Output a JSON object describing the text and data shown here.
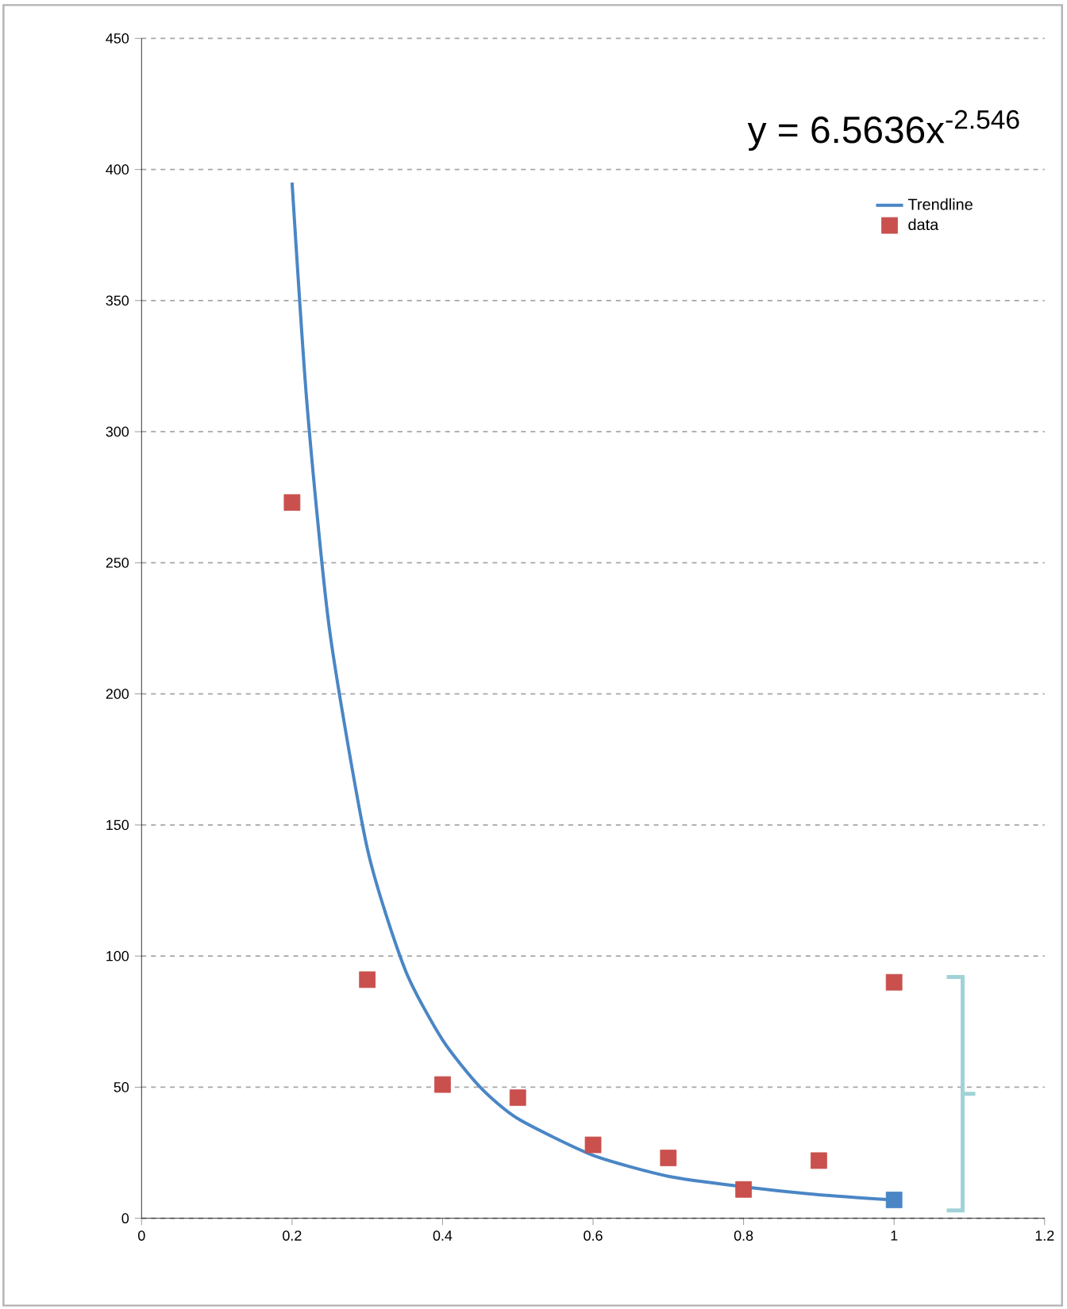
{
  "chart_data": {
    "type": "scatter",
    "annotations": [
      "y = 6.5636x$^{-2.546}$"
    ],
    "series": [
      {
        "name": "Trendline",
        "type": "line",
        "color": "#4a86c5",
        "marker": "none",
        "x": [
          0.2,
          0.22,
          0.25,
          0.3,
          0.35,
          0.4,
          0.45,
          0.5,
          0.6,
          0.7,
          0.8,
          0.9,
          1.0
        ],
        "values": [
          395,
          310,
          224,
          141,
          95,
          68,
          50,
          38,
          24,
          16,
          12,
          9,
          7
        ]
      },
      {
        "name": "data",
        "color": "#c9504d",
        "marker": "square",
        "x": [
          0.2,
          0.3,
          0.4,
          0.5,
          0.6,
          0.7,
          0.8,
          0.9,
          1.0
        ],
        "values": [
          273,
          91,
          51,
          46,
          28,
          23,
          11,
          22,
          90
        ]
      },
      {
        "color": "#4a86c5",
        "marker": "square",
        "x": [
          1.0
        ],
        "values": [
          7
        ]
      }
    ],
    "xlim": [
      0,
      1.2
    ],
    "xticks": [
      0,
      0.2,
      0.4,
      0.6,
      0.8,
      1,
      1.2
    ],
    "ylim": [
      0,
      450
    ],
    "yticks": [
      0,
      50,
      100,
      150,
      200,
      250,
      300,
      350,
      400,
      450
    ],
    "grid": "y",
    "legend": "top right"
  }
}
